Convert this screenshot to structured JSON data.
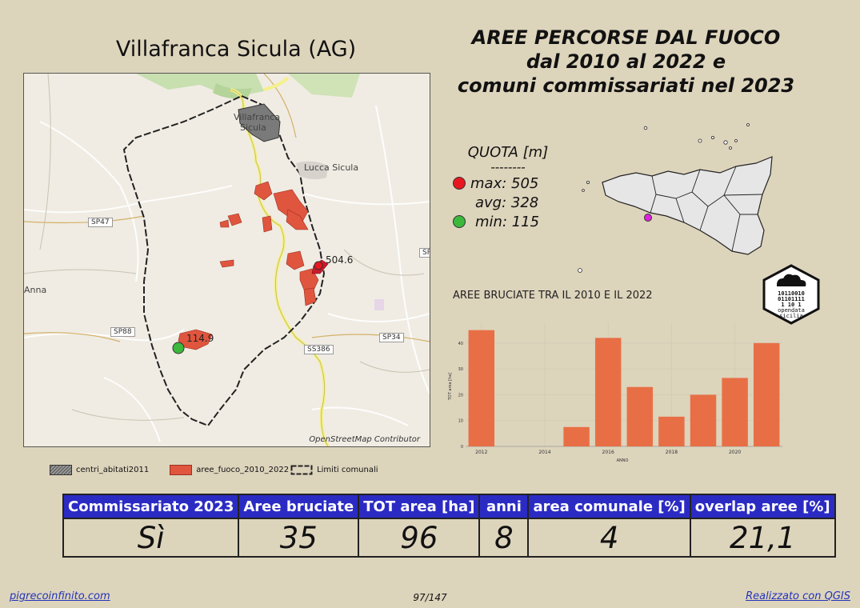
{
  "place_title": "Villafranca Sicula (AG)",
  "main_title": [
    "AREE PERCORSE DAL FUOCO",
    "dal 2010 al 2022 e",
    "comuni commissariati nel 2023"
  ],
  "map": {
    "labels": {
      "town_line1": "Villafranca",
      "town_line2": "Sicula",
      "lucca": "Lucca Sicula",
      "anna": "Anna"
    },
    "roads": [
      "SP47",
      "SP88",
      "SP34",
      "SS386",
      "SP"
    ],
    "max_label": "504.6",
    "min_label": "114.9",
    "credit": "OpenStreetMap Contributor",
    "colors": {
      "fire": "#e0553e",
      "boundary": "#222222",
      "road": "#f5f08a",
      "max_dot": "#e8171f",
      "min_dot": "#3cb83c"
    }
  },
  "legend": [
    {
      "label": "centri_abitati2011"
    },
    {
      "label": "aree_fuoco_2010_2022"
    },
    {
      "label": "Limiti comunali"
    }
  ],
  "quota": {
    "title": "QUOTA [m]",
    "separator": "--------",
    "max": "max: 505",
    "avg": "avg: 328",
    "min": "min: 115"
  },
  "chart_title": "AREE BRUCIATE TRA IL 2010 E IL 2022",
  "chart_data": {
    "type": "bar",
    "title": "AREE BRUCIATE TRA IL 2010 E IL 2022",
    "xlabel": "ANNO",
    "ylabel": "TOT area [ha]",
    "x": [
      2012,
      2013,
      2014,
      2015,
      2016,
      2017,
      2018,
      2019,
      2020,
      2021
    ],
    "values": [
      45,
      0,
      0,
      7.5,
      42,
      23,
      11.5,
      20,
      26.5,
      40
    ],
    "xticks": [
      "2012",
      "2014",
      "2016",
      "2018",
      "2020"
    ],
    "yticks": [
      "0",
      "10",
      "20",
      "30",
      "40"
    ],
    "ylim": [
      0,
      48
    ],
    "color": "#e86f45",
    "grid": true
  },
  "table": {
    "headers": [
      "Commissariato 2023",
      "Aree bruciate",
      "TOT area [ha]",
      "anni",
      "area comunale [%]",
      "overlap aree [%]"
    ],
    "values": [
      "Sì",
      "35",
      "96",
      "8",
      "4",
      "21,1"
    ]
  },
  "footer": {
    "left": "pigrecoinfinito.com",
    "center": "97/147",
    "right": "Realizzato con QGIS"
  },
  "logo_text": [
    "10110010",
    "01101111",
    "1  10 1",
    "opendata",
    "sicilia"
  ]
}
